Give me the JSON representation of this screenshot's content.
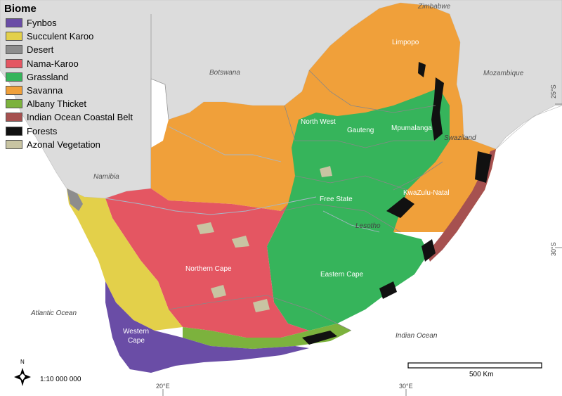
{
  "legend": {
    "title": "Biome",
    "items": [
      {
        "label": "Fynbos",
        "color": "#6a4da6"
      },
      {
        "label": "Succulent Karoo",
        "color": "#e3d04a"
      },
      {
        "label": "Desert",
        "color": "#8d8d8d"
      },
      {
        "label": "Nama-Karoo",
        "color": "#e45662"
      },
      {
        "label": "Grassland",
        "color": "#36b45b"
      },
      {
        "label": "Savanna",
        "color": "#f0a03a"
      },
      {
        "label": "Albany Thicket",
        "color": "#7cb23d"
      },
      {
        "label": "Indian Ocean Coastal Belt",
        "color": "#a65150"
      },
      {
        "label": "Forests",
        "color": "#111111"
      },
      {
        "label": "Azonal Vegetation",
        "color": "#c8c4a2"
      }
    ]
  },
  "countries": {
    "zimbabwe": "Zimbabwe",
    "botswana": "Botswana",
    "mozambique": "Mozambique",
    "namibia": "Namibia",
    "lesotho": "Lesotho",
    "swaziland": "Swaziland"
  },
  "oceans": {
    "atlantic": "Atlantic Ocean",
    "indian": "Indian Ocean"
  },
  "provinces": {
    "limpopo": "Limpopo",
    "north_west": "North West",
    "gauteng": "Gauteng",
    "mpumalanga": "Mpumalanga",
    "free_state": "Free State",
    "kwazulu_natal": "KwaZulu-Natal",
    "northern_cape": "Northern Cape",
    "eastern_cape": "Eastern Cape",
    "western_cape_line1": "Western",
    "western_cape_line2": "Cape"
  },
  "coordinates": {
    "lat_25": "25°S",
    "lat_30": "30°S",
    "lon_20": "20°E",
    "lon_30": "30°E"
  },
  "scale": {
    "ratio": "1:10 000 000",
    "bar_label": "500 Km"
  },
  "north_arrow": {
    "label": "N"
  },
  "colors": {
    "land_neighbour": "#dcdcdc",
    "sea": "#ffffff",
    "border": "#888888"
  }
}
